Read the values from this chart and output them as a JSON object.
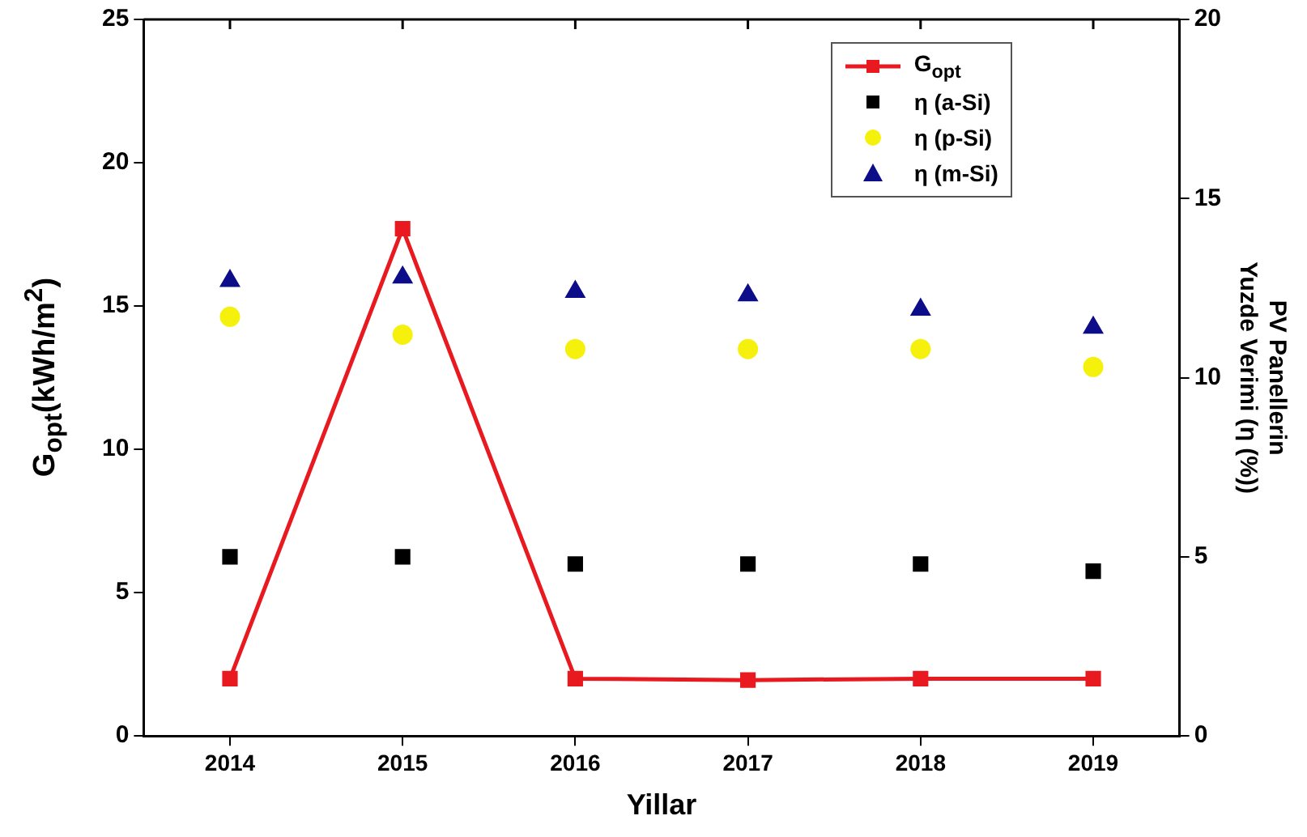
{
  "chart_data": {
    "type": "line",
    "xlabel": "Yillar",
    "ylabel": "G$_{opt}$(kWh/m$^{2}$)",
    "y2label": "PV Panellerin\nYuzde Verimi (η (%))",
    "categories": [
      "2014",
      "2015",
      "2016",
      "2017",
      "2018",
      "2019"
    ],
    "ylim": [
      0,
      25
    ],
    "yticks": [
      0,
      5,
      10,
      15,
      20,
      25
    ],
    "y2lim": [
      0,
      20
    ],
    "y2ticks": [
      0,
      5,
      10,
      15,
      20
    ],
    "grid": false,
    "legend": "top right",
    "series": [
      {
        "name": "G$_{opt}$",
        "type": "line",
        "marker": "square",
        "line_style": "solid",
        "color": "#e8191f",
        "values": [
          2.0,
          17.7,
          2.0,
          1.95,
          2.0,
          2.0
        ]
      },
      {
        "name": "η (a-Si)",
        "type": "scatter",
        "axis": "y2",
        "marker": "square",
        "color": "#000000",
        "values": [
          5.0,
          5.0,
          4.8,
          4.8,
          4.8,
          4.6
        ]
      },
      {
        "name": "η (p-Si)",
        "type": "scatter",
        "axis": "y2",
        "marker": "circle",
        "color": "#f5f00c",
        "values": [
          11.7,
          11.2,
          10.8,
          10.8,
          10.8,
          10.3
        ]
      },
      {
        "name": "η (m-Si)",
        "type": "scatter",
        "axis": "y2",
        "marker": "triangle",
        "color": "#0d0d8a",
        "values": [
          12.7,
          12.8,
          12.4,
          12.3,
          11.9,
          11.4
        ]
      }
    ]
  }
}
